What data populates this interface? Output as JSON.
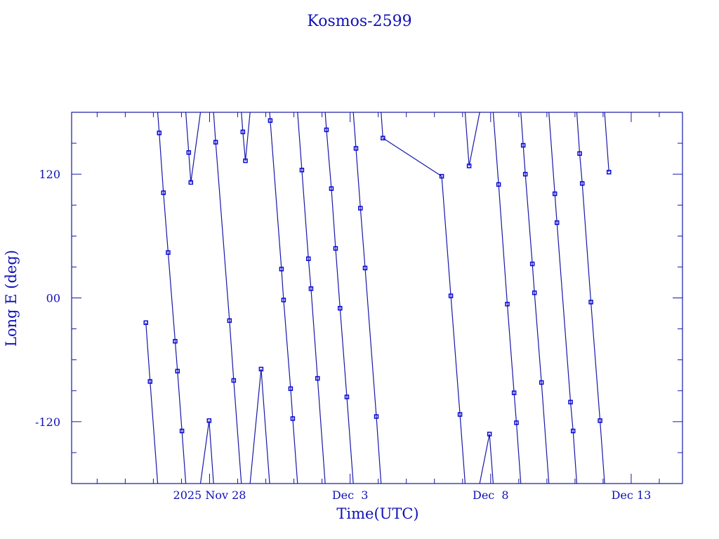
{
  "chart_data": {
    "type": "line",
    "title": "Kosmos-2599",
    "xlabel": "Time(UTC)",
    "ylabel": "Long E (deg)",
    "xlim": [
      "2025-11-23T02:12",
      "2025-12-14T19:48"
    ],
    "ylim": [
      -180,
      180
    ],
    "x_tick_labels": [
      {
        "date": "2025-11-28T00:00",
        "label": "2025 Nov 28"
      },
      {
        "date": "2025-12-03T00:00",
        "label": "Dec  3"
      },
      {
        "date": "2025-12-08T00:00",
        "label": "Dec  8"
      },
      {
        "date": "2025-12-13T00:00",
        "label": "Dec 13"
      }
    ],
    "y_tick_labels": [
      {
        "value": 120,
        "label": "120"
      },
      {
        "value": 0,
        "label": "00"
      },
      {
        "value": -120,
        "label": "-120"
      }
    ],
    "grid": false,
    "marker": "square",
    "color": "#1818a8",
    "longitude_wraps": true,
    "points": [
      [
        "2025-11-25T17:36",
        -24
      ],
      [
        "2025-11-25T21:12",
        -81
      ],
      [
        "2025-11-26T05:00",
        160
      ],
      [
        "2025-11-26T08:36",
        102
      ],
      [
        "2025-11-26T12:36",
        44
      ],
      [
        "2025-11-26T18:36",
        -42
      ],
      [
        "2025-11-26T20:36",
        -71
      ],
      [
        "2025-11-27T00:24",
        -129
      ],
      [
        "2025-11-27T06:12",
        141
      ],
      [
        "2025-11-27T08:00",
        112
      ],
      [
        "2025-11-27T23:36",
        -119
      ],
      [
        "2025-11-28T05:12",
        151
      ],
      [
        "2025-11-28T17:00",
        -22
      ],
      [
        "2025-11-28T20:36",
        -80
      ],
      [
        "2025-11-29T04:24",
        161
      ],
      [
        "2025-11-29T06:36",
        133
      ],
      [
        "2025-11-29T20:00",
        -69
      ],
      [
        "2025-11-30T03:48",
        172
      ],
      [
        "2025-11-30T13:24",
        28
      ],
      [
        "2025-11-30T15:12",
        -2
      ],
      [
        "2025-11-30T21:12",
        -88
      ],
      [
        "2025-11-30T23:00",
        -117
      ],
      [
        "2025-12-01T06:48",
        124
      ],
      [
        "2025-12-01T12:24",
        38
      ],
      [
        "2025-12-01T14:36",
        9
      ],
      [
        "2025-12-01T20:12",
        -78
      ],
      [
        "2025-12-02T03:48",
        163
      ],
      [
        "2025-12-02T08:00",
        106
      ],
      [
        "2025-12-02T11:36",
        48
      ],
      [
        "2025-12-02T15:24",
        -10
      ],
      [
        "2025-12-02T21:12",
        -96
      ],
      [
        "2025-12-03T05:00",
        145
      ],
      [
        "2025-12-03T08:48",
        87
      ],
      [
        "2025-12-03T12:48",
        29
      ],
      [
        "2025-12-03T22:24",
        -115
      ],
      [
        "2025-12-04T04:00",
        155
      ],
      [
        "2025-12-06T06:12",
        118
      ],
      [
        "2025-12-06T14:00",
        2
      ],
      [
        "2025-12-06T21:48",
        -113
      ],
      [
        "2025-12-07T05:36",
        128
      ],
      [
        "2025-12-07T23:00",
        -132
      ],
      [
        "2025-12-08T06:48",
        110
      ],
      [
        "2025-12-08T14:12",
        -6
      ],
      [
        "2025-12-08T20:00",
        -92
      ],
      [
        "2025-12-08T22:00",
        -121
      ],
      [
        "2025-12-09T03:48",
        148
      ],
      [
        "2025-12-09T05:36",
        120
      ],
      [
        "2025-12-09T11:36",
        33
      ],
      [
        "2025-12-09T13:24",
        5
      ],
      [
        "2025-12-09T19:24",
        -82
      ],
      [
        "2025-12-10T06:48",
        101
      ],
      [
        "2025-12-10T08:36",
        73
      ],
      [
        "2025-12-10T20:12",
        -101
      ],
      [
        "2025-12-10T22:24",
        -129
      ],
      [
        "2025-12-11T04:00",
        140
      ],
      [
        "2025-12-11T06:12",
        111
      ],
      [
        "2025-12-11T13:36",
        -4
      ],
      [
        "2025-12-11T21:24",
        -119
      ],
      [
        "2025-12-12T05:00",
        122
      ]
    ]
  }
}
